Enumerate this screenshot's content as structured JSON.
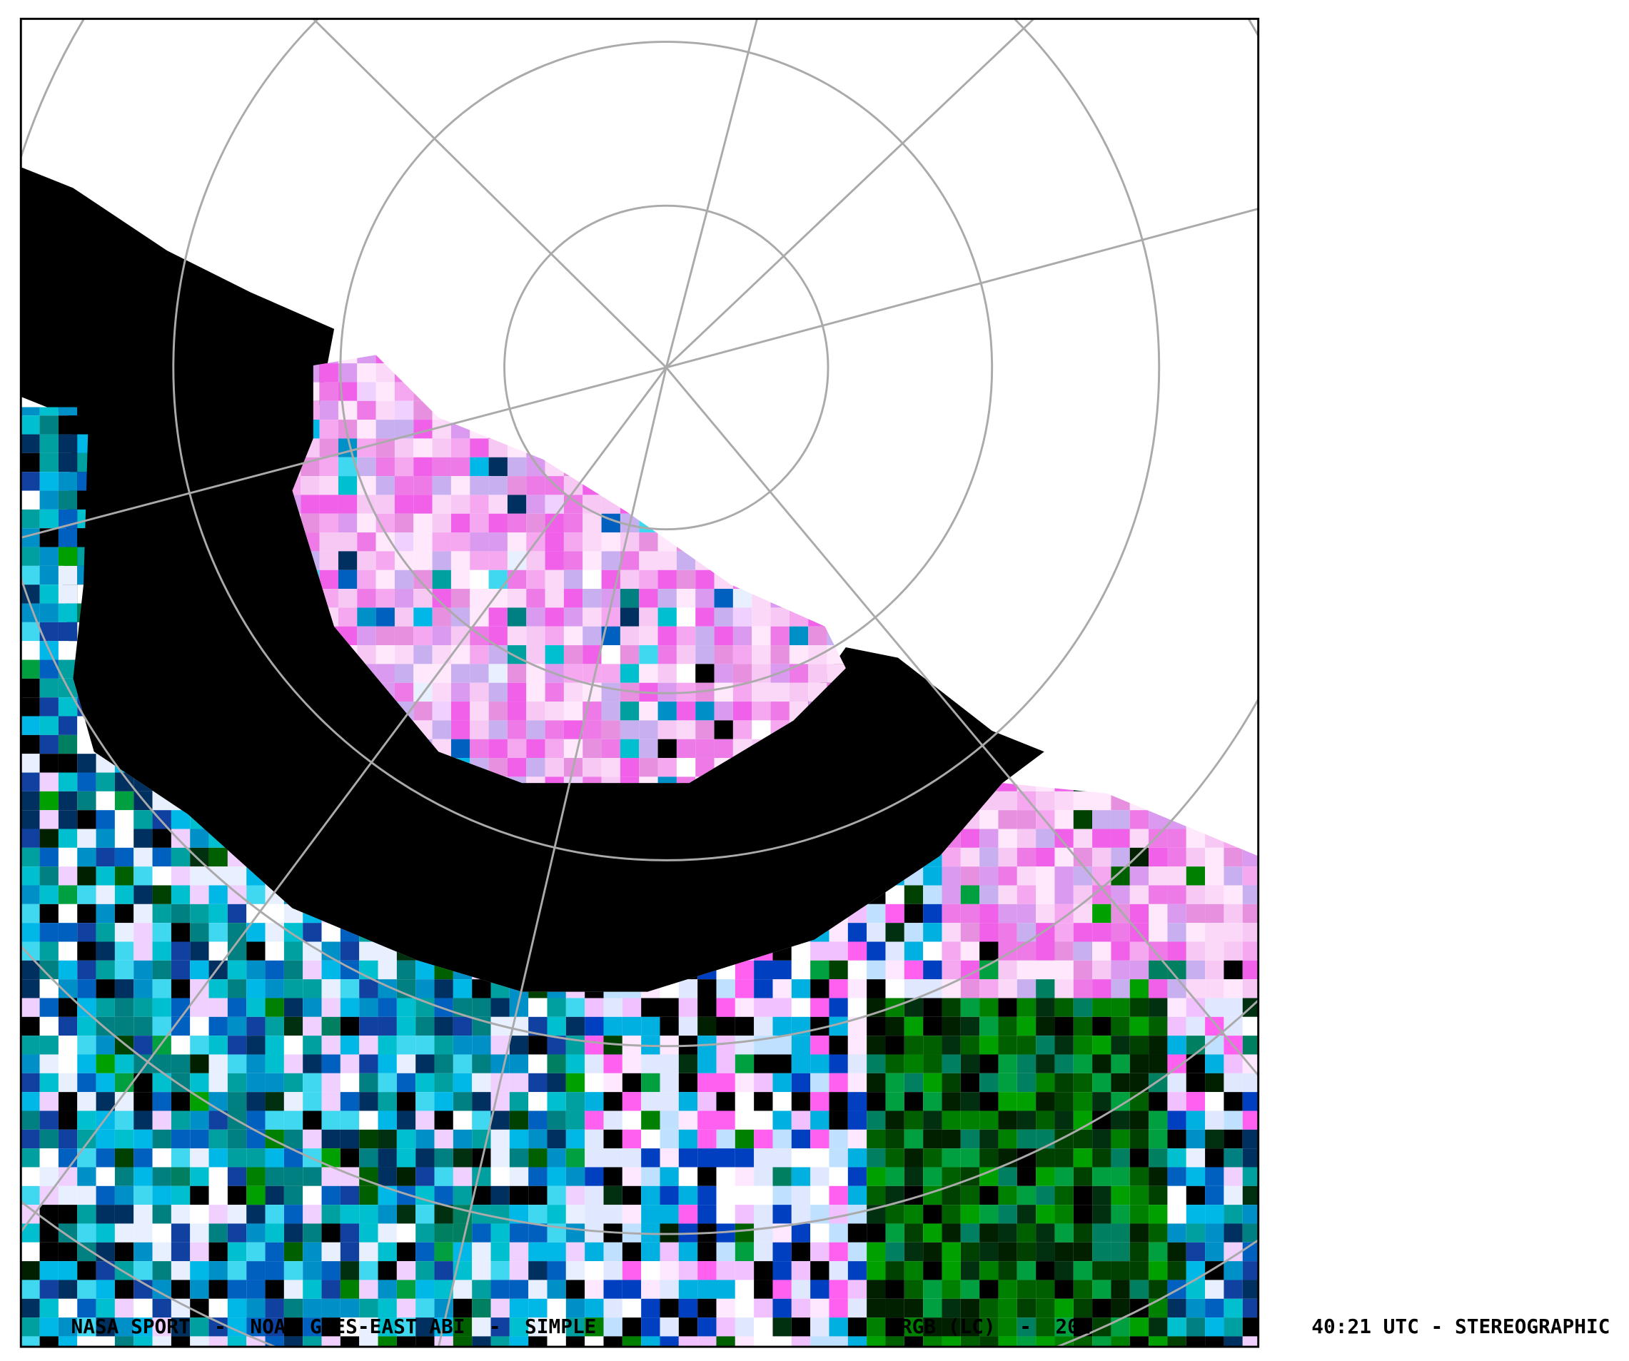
{
  "caption": {
    "parts": [
      "NASA SPORT  -  NOAA GOES-EAST ABI  -  SIMPLE",
      "RGB (LC)  -  202",
      "40:21 UTC - STEREOGRAPHIC"
    ]
  }
}
